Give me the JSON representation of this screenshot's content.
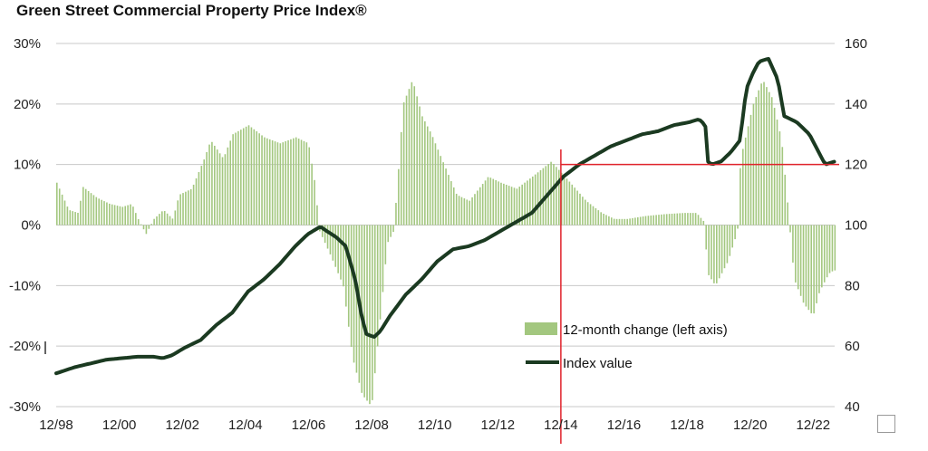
{
  "chart_data": {
    "type": "bar+line",
    "title": "Green Street Commercial Property Price Index®",
    "left_axis": {
      "ticks": [
        30,
        20,
        10,
        0,
        -10,
        -20,
        -30
      ],
      "tick_labels": [
        "30%",
        "20%",
        "10%",
        "0%",
        "-10%",
        "-20%",
        "-30%"
      ],
      "ylim": [
        -30,
        30
      ]
    },
    "right_axis": {
      "ticks": [
        160,
        140,
        120,
        100,
        80,
        60,
        40
      ],
      "tick_labels": [
        "160",
        "140",
        "120",
        "100",
        "80",
        "60",
        "40"
      ],
      "ylim": [
        40,
        160
      ]
    },
    "x_axis": {
      "tick_labels": [
        "12/98",
        "12/00",
        "12/02",
        "12/04",
        "12/06",
        "12/08",
        "12/10",
        "12/12",
        "12/14",
        "12/16",
        "12/18",
        "12/20",
        "12/22"
      ],
      "xlim": [
        1998.92,
        2023.6
      ]
    },
    "gridlines": true,
    "legend": {
      "placement": "bottom-right",
      "entries": [
        "12-month change (left axis)",
        "Index value"
      ]
    },
    "colors": {
      "bars": "#a3c77f",
      "line": "#1b3a21",
      "annotation": "#e0232b",
      "grid": "#c8c8c8"
    },
    "change_anchors": [
      [
        1998.92,
        7
      ],
      [
        1999.3,
        2.5
      ],
      [
        1999.6,
        2
      ],
      [
        1999.75,
        6.3
      ],
      [
        2000.2,
        4.5
      ],
      [
        2000.6,
        3.5
      ],
      [
        2001.0,
        3
      ],
      [
        2001.3,
        3.5
      ],
      [
        2001.5,
        1
      ],
      [
        2001.75,
        -1.5
      ],
      [
        2002.0,
        1
      ],
      [
        2002.3,
        2.5
      ],
      [
        2002.6,
        1
      ],
      [
        2002.8,
        5
      ],
      [
        2003.2,
        6
      ],
      [
        2003.6,
        11
      ],
      [
        2003.8,
        14
      ],
      [
        2004.2,
        11
      ],
      [
        2004.5,
        15
      ],
      [
        2005.0,
        16.5
      ],
      [
        2005.5,
        14.5
      ],
      [
        2006.0,
        13.5
      ],
      [
        2006.5,
        14.5
      ],
      [
        2006.9,
        13.5
      ],
      [
        2007.1,
        7
      ],
      [
        2007.25,
        -1
      ],
      [
        2007.6,
        -5
      ],
      [
        2008.0,
        -10
      ],
      [
        2008.3,
        -22
      ],
      [
        2008.6,
        -28
      ],
      [
        2008.9,
        -30
      ],
      [
        2009.2,
        -14
      ],
      [
        2009.4,
        -3
      ],
      [
        2009.6,
        -1
      ],
      [
        2009.75,
        9
      ],
      [
        2009.9,
        20
      ],
      [
        2010.2,
        24
      ],
      [
        2010.5,
        18
      ],
      [
        2010.8,
        15
      ],
      [
        2011.2,
        10
      ],
      [
        2011.6,
        5
      ],
      [
        2012.0,
        4
      ],
      [
        2012.6,
        8
      ],
      [
        2013.0,
        7
      ],
      [
        2013.5,
        6
      ],
      [
        2014.0,
        8
      ],
      [
        2014.6,
        10.5
      ],
      [
        2015.2,
        7
      ],
      [
        2015.7,
        4
      ],
      [
        2016.2,
        2
      ],
      [
        2016.6,
        1
      ],
      [
        2017.0,
        1
      ],
      [
        2017.6,
        1.5
      ],
      [
        2018.2,
        1.8
      ],
      [
        2018.8,
        2
      ],
      [
        2019.2,
        2
      ],
      [
        2019.45,
        0.5
      ],
      [
        2019.55,
        -8
      ],
      [
        2019.8,
        -10
      ],
      [
        2020.2,
        -6
      ],
      [
        2020.5,
        -1
      ],
      [
        2020.6,
        11
      ],
      [
        2021.0,
        20
      ],
      [
        2021.3,
        24
      ],
      [
        2021.6,
        21
      ],
      [
        2021.9,
        14
      ],
      [
        2022.1,
        3
      ],
      [
        2022.3,
        -9
      ],
      [
        2022.6,
        -13
      ],
      [
        2022.9,
        -15
      ],
      [
        2023.1,
        -11
      ],
      [
        2023.4,
        -8
      ],
      [
        2023.55,
        -7.5
      ]
    ],
    "index_anchors": [
      [
        1998.92,
        51
      ],
      [
        1999.5,
        53
      ],
      [
        2000.5,
        55.5
      ],
      [
        2001.5,
        56.5
      ],
      [
        2002.0,
        56.5
      ],
      [
        2002.3,
        56
      ],
      [
        2002.6,
        57
      ],
      [
        2003.0,
        59.5
      ],
      [
        2003.5,
        62
      ],
      [
        2004.0,
        67
      ],
      [
        2004.5,
        71
      ],
      [
        2005.0,
        78
      ],
      [
        2005.5,
        82
      ],
      [
        2006.0,
        87
      ],
      [
        2006.5,
        93
      ],
      [
        2006.9,
        97
      ],
      [
        2007.3,
        99.5
      ],
      [
        2007.5,
        98
      ],
      [
        2007.8,
        96
      ],
      [
        2008.1,
        93
      ],
      [
        2008.4,
        82
      ],
      [
        2008.6,
        70
      ],
      [
        2008.75,
        64
      ],
      [
        2009.0,
        63
      ],
      [
        2009.2,
        65
      ],
      [
        2009.5,
        70
      ],
      [
        2010.0,
        77
      ],
      [
        2010.5,
        82
      ],
      [
        2011.0,
        88
      ],
      [
        2011.5,
        92
      ],
      [
        2012.0,
        93
      ],
      [
        2012.5,
        95
      ],
      [
        2013.0,
        98
      ],
      [
        2013.5,
        101
      ],
      [
        2014.0,
        104
      ],
      [
        2014.5,
        110
      ],
      [
        2015.0,
        116
      ],
      [
        2015.5,
        120
      ],
      [
        2016.0,
        123
      ],
      [
        2016.5,
        126
      ],
      [
        2017.0,
        128
      ],
      [
        2017.5,
        130
      ],
      [
        2018.0,
        131
      ],
      [
        2018.5,
        133
      ],
      [
        2019.0,
        134
      ],
      [
        2019.3,
        135
      ],
      [
        2019.5,
        133
      ],
      [
        2019.58,
        121
      ],
      [
        2019.7,
        120
      ],
      [
        2020.0,
        121
      ],
      [
        2020.3,
        124
      ],
      [
        2020.6,
        128
      ],
      [
        2020.8,
        145
      ],
      [
        2021.0,
        150
      ],
      [
        2021.2,
        154
      ],
      [
        2021.5,
        155
      ],
      [
        2021.8,
        148
      ],
      [
        2022.0,
        136
      ],
      [
        2022.4,
        134
      ],
      [
        2022.8,
        130
      ],
      [
        2023.1,
        124
      ],
      [
        2023.3,
        120
      ],
      [
        2023.6,
        121
      ]
    ],
    "reference_lines": {
      "vertical_x": 2014.92,
      "horizontal_y": 120
    }
  }
}
